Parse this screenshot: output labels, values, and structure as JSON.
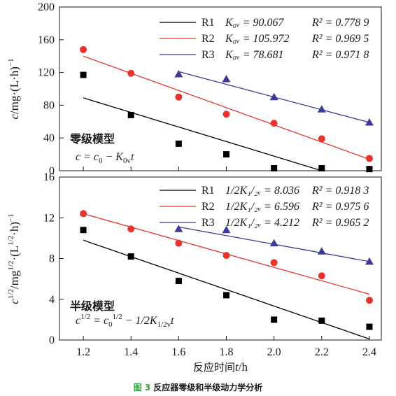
{
  "caption": {
    "number": "图 3",
    "text": "反应器零级和半级动力学分析"
  },
  "chart_data": [
    {
      "type": "scatter",
      "ylabel": "c/mg·(L·h)⁻¹",
      "ylim": [
        0,
        200
      ],
      "yticks": [
        0,
        40,
        80,
        120,
        160,
        200
      ],
      "xlim": [
        1.1,
        2.45
      ],
      "model_name": "零级模型",
      "model_equation": "c = c₀ − K₀ᵥt",
      "legend_placement": "top-right",
      "series": [
        {
          "name": "R1",
          "color": "#000000",
          "marker": "square",
          "x": [
            1.2,
            1.4,
            1.6,
            1.8,
            2.0,
            2.2,
            2.4
          ],
          "y": [
            117,
            68,
            33,
            20,
            3,
            3,
            2
          ],
          "fit": [
            [
              1.2,
              89
            ],
            [
              2.2,
              0
            ]
          ],
          "legend_param": "K₀ᵥ = 90.067",
          "legend_r2": "R² = 0.778 9"
        },
        {
          "name": "R2",
          "color": "#e8342c",
          "marker": "circle",
          "x": [
            1.2,
            1.4,
            1.6,
            1.8,
            2.0,
            2.2,
            2.4
          ],
          "y": [
            148,
            119,
            90,
            69,
            58,
            39,
            15
          ],
          "fit": [
            [
              1.2,
              140
            ],
            [
              2.4,
              14
            ]
          ],
          "legend_param": "K₀ᵥ = 105.972",
          "legend_r2": "R² = 0.969 5"
        },
        {
          "name": "R3",
          "color": "#3b3a98",
          "marker": "triangle",
          "x": [
            1.6,
            1.8,
            2.0,
            2.2,
            2.4
          ],
          "y": [
            118,
            112,
            90,
            75,
            59
          ],
          "fit": [
            [
              1.6,
              121
            ],
            [
              2.4,
              59
            ]
          ],
          "legend_param": "K₀ᵥ = 78.681",
          "legend_r2": "R² = 0.971 8"
        }
      ]
    },
    {
      "type": "scatter",
      "xlabel": "反应时间t/h",
      "ylabel": "c^1/2/mg^1/2·(L^1/2·h)⁻¹",
      "ylim": [
        0,
        16
      ],
      "yticks": [
        0,
        4,
        8,
        12,
        16
      ],
      "xlim": [
        1.1,
        2.45
      ],
      "xticks": [
        1.2,
        1.4,
        1.6,
        1.8,
        2.0,
        2.2,
        2.4
      ],
      "xtick_labels": [
        "1.2",
        "1.4",
        "1.6",
        "1.8",
        "2.0",
        "2.2",
        "2.4"
      ],
      "model_name": "半级模型",
      "model_equation": "c^1/2 = c₀^1/2 − 1/2K₁/₂ᵥt",
      "legend_placement": "top-right",
      "series": [
        {
          "name": "R1",
          "color": "#000000",
          "marker": "square",
          "x": [
            1.2,
            1.4,
            1.6,
            1.8,
            2.0,
            2.2,
            2.4
          ],
          "y": [
            10.8,
            8.2,
            5.8,
            4.4,
            2.0,
            1.9,
            1.3
          ],
          "fit": [
            [
              1.2,
              9.8
            ],
            [
              2.4,
              0.1
            ]
          ],
          "legend_param": "1/2K₁/₂ᵥ = 8.036",
          "legend_r2": "R² = 0.918 3"
        },
        {
          "name": "R2",
          "color": "#e8342c",
          "marker": "circle",
          "x": [
            1.2,
            1.4,
            1.6,
            1.8,
            2.0,
            2.2,
            2.4
          ],
          "y": [
            12.4,
            10.9,
            9.5,
            8.3,
            7.6,
            6.3,
            3.9
          ],
          "fit": [
            [
              1.2,
              12.4
            ],
            [
              2.4,
              4.5
            ]
          ],
          "legend_param": "1/2K₁/₂ᵥ = 6.596",
          "legend_r2": "R² = 0.975 6"
        },
        {
          "name": "R3",
          "color": "#3b3a98",
          "marker": "triangle",
          "x": [
            1.6,
            1.8,
            2.0,
            2.2,
            2.4
          ],
          "y": [
            10.9,
            10.8,
            9.5,
            8.7,
            7.7
          ],
          "fit": [
            [
              1.6,
              11.1
            ],
            [
              2.4,
              7.7
            ]
          ],
          "legend_param": "1/2K₁/₂ᵥ = 4.212",
          "legend_r2": "R² = 0.965 2"
        }
      ]
    }
  ]
}
